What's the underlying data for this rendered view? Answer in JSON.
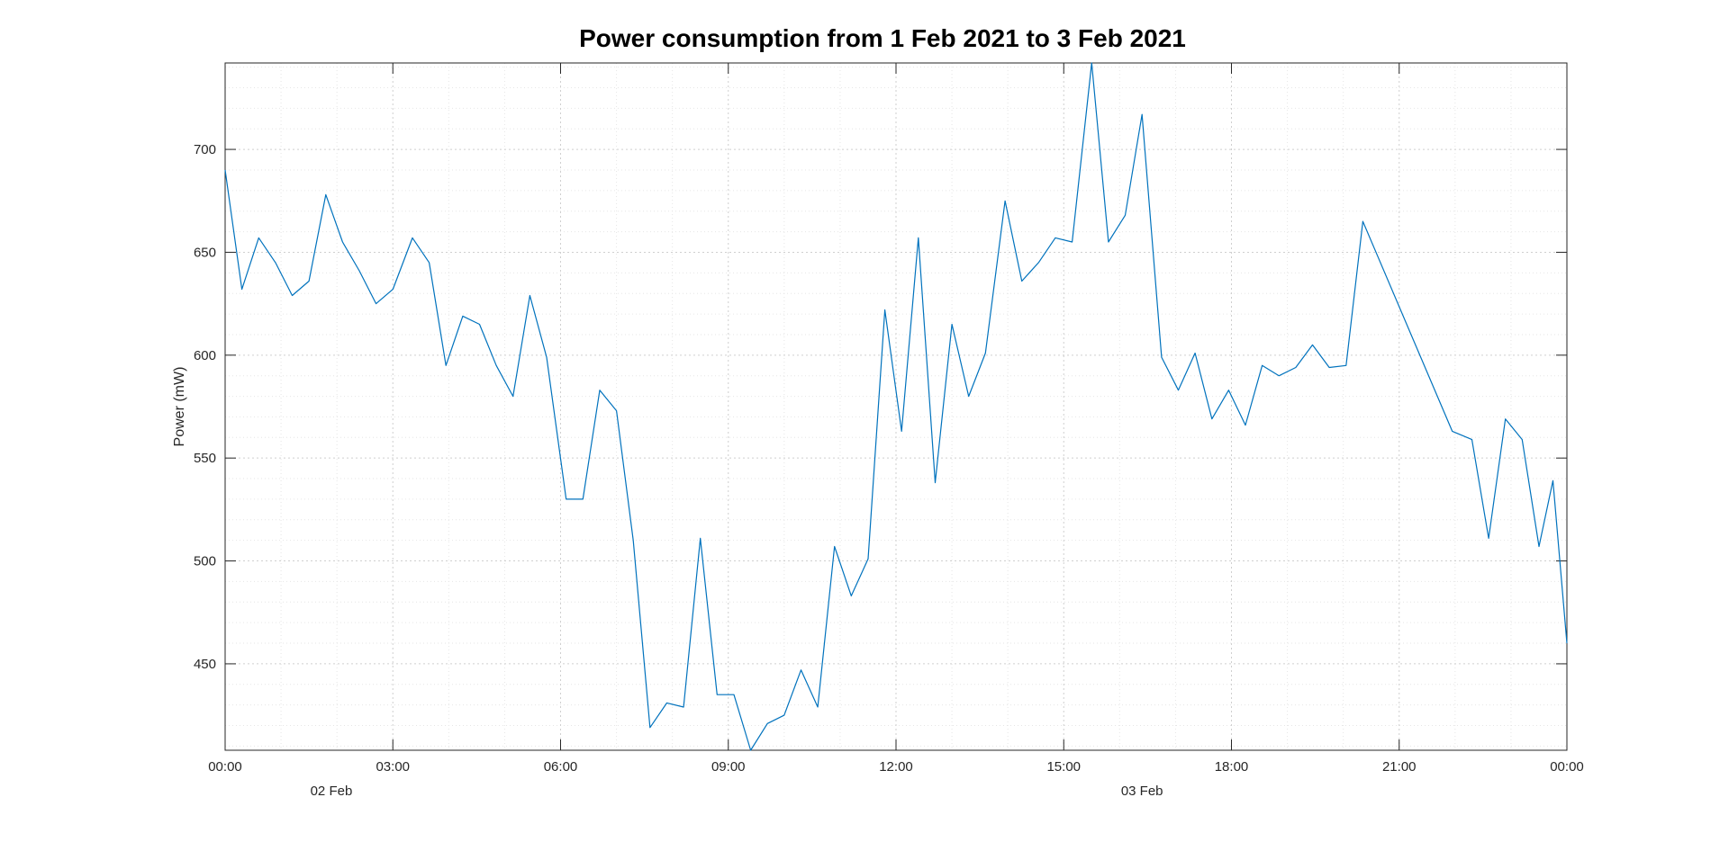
{
  "chart_data": {
    "type": "line",
    "title": "Power consumption from  1 Feb 2021 to 3 Feb 2021",
    "xlabel": "",
    "ylabel": "Power (mW)",
    "xlim_hours": [
      0,
      24
    ],
    "ylim": [
      408,
      742
    ],
    "grid": "on",
    "minor_grid": "on",
    "line_color": "#0072BD",
    "x_ticks": [
      {
        "hours": 0,
        "label": "00:00"
      },
      {
        "hours": 3,
        "label": "03:00"
      },
      {
        "hours": 6,
        "label": "06:00"
      },
      {
        "hours": 9,
        "label": "09:00"
      },
      {
        "hours": 12,
        "label": "12:00"
      },
      {
        "hours": 15,
        "label": "15:00"
      },
      {
        "hours": 18,
        "label": "18:00"
      },
      {
        "hours": 21,
        "label": "21:00"
      },
      {
        "hours": 24,
        "label": "00:00"
      }
    ],
    "date_labels": [
      {
        "hours": 1.9,
        "label": "02 Feb"
      },
      {
        "hours": 16.4,
        "label": "03 Feb"
      }
    ],
    "y_ticks": [
      450,
      500,
      550,
      600,
      650,
      700
    ],
    "series": [
      {
        "x_hours": [
          0.0,
          0.3,
          0.6,
          0.9,
          1.2,
          1.5,
          1.8,
          2.1,
          2.4,
          2.7,
          3.0,
          3.35,
          3.65,
          3.95,
          4.25,
          4.55,
          4.85,
          5.15,
          5.45,
          5.75,
          6.1,
          6.4,
          6.7,
          7.0,
          7.3,
          7.6,
          7.9,
          8.2,
          8.5,
          8.8,
          9.1,
          9.4,
          9.7,
          10.0,
          10.3,
          10.6,
          10.9,
          11.2,
          11.5,
          11.8,
          12.1,
          12.4,
          12.7,
          13.0,
          13.3,
          13.6,
          13.95,
          14.25,
          14.55,
          14.85,
          15.15,
          15.5,
          15.8,
          16.1,
          16.4,
          16.75,
          17.05,
          17.35,
          17.65,
          17.95,
          18.25,
          18.55,
          18.85,
          19.15,
          19.45,
          19.75,
          20.05,
          20.35,
          21.95,
          22.3,
          22.6,
          22.9,
          23.2,
          23.5,
          23.75,
          24.0
        ],
        "y": [
          690,
          632,
          657,
          645,
          629,
          636,
          678,
          655,
          641,
          625,
          632,
          657,
          645,
          595,
          619,
          615,
          595,
          580,
          629,
          599,
          530,
          530,
          583,
          573,
          510,
          419,
          431,
          429,
          511,
          435,
          435,
          408,
          421,
          425,
          447,
          429,
          507,
          483,
          501,
          622,
          563,
          657,
          538,
          615,
          580,
          601,
          675,
          636,
          645,
          657,
          655,
          742,
          655,
          668,
          717,
          599,
          583,
          601,
          569,
          583,
          566,
          595,
          590,
          594,
          605,
          594,
          595,
          665,
          563,
          559,
          511,
          569,
          559,
          507,
          539,
          460
        ]
      }
    ]
  }
}
